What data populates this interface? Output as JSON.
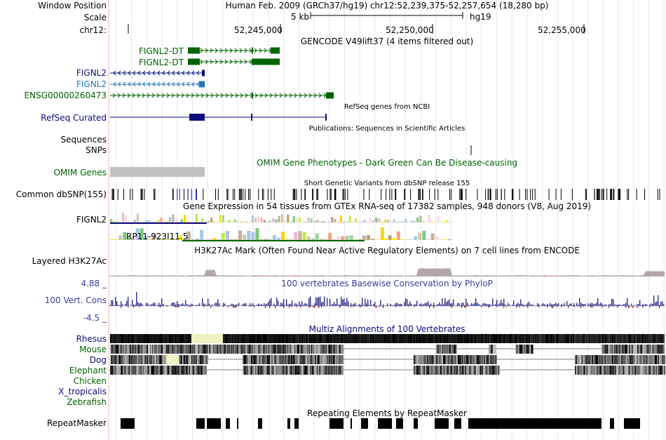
{
  "header": {
    "window_position_label": "Window Position",
    "assembly_position": "Human Feb. 2009 (GRCh37/hg19)   chr12:52,239,375-52,257,654 (18,280 bp)",
    "scale_label": "Scale",
    "scale_value": "5 kb",
    "scale_db": "hg19",
    "chrom_label": "chr12:",
    "ticks": [
      "52,245,000",
      "52,250,000",
      "52,255,000"
    ]
  },
  "gencode": {
    "title": "GENCODE V49lift37 (4 items filtered out)",
    "items": [
      {
        "label": "FIGNL2-DT",
        "color": "#006400"
      },
      {
        "label": "FIGNL2-DT",
        "color": "#006400"
      },
      {
        "label": "FIGNL2",
        "color": "#0b0b7a"
      },
      {
        "label": "FIGNL2",
        "color": "#1f77b4"
      },
      {
        "label": "ENSG00000260473",
        "color": "#006400"
      }
    ]
  },
  "refseq": {
    "title": "RefSeq genes from NCBI",
    "label": "RefSeq Curated"
  },
  "publications": {
    "title": "Publications: Sequences in Scientific Articles",
    "sequences_label": "Sequences",
    "snps_label": "SNPs"
  },
  "omim": {
    "title": "OMIM Gene Phenotypes - Dark Green Can Be Disease-causing",
    "label": "OMIM Genes"
  },
  "dbsnp": {
    "title": "Short Genetic Variants from dbSNP release 155",
    "label": "Common dbSNP(155)"
  },
  "gtex": {
    "title": "Gene Expression in 54 tissues from GTEx RNA-seq of 17382 samples, 948 donors (V8, Aug 2019)",
    "gene1": "FIGNL2",
    "gene2": "RP11-923I11.5"
  },
  "h3k27ac": {
    "title": "H3K27Ac Mark (Often Found Near Active Regulatory Elements) on 7 cell lines from ENCODE",
    "label": "Layered H3K27Ac"
  },
  "conservation": {
    "title": "100 vertebrates Basewise Conservation by PhyloP",
    "label": "100 Vert. Cons",
    "max": "4.88 _",
    "min": "-4.5 _"
  },
  "multiz": {
    "title": "Multiz Alignments of 100 Vertebrates",
    "species": [
      {
        "name": "Rhesus",
        "color": "#0b0b7a"
      },
      {
        "name": "Mouse",
        "color": "#006400"
      },
      {
        "name": "Dog",
        "color": "#0b0b7a"
      },
      {
        "name": "Elephant",
        "color": "#006400"
      },
      {
        "name": "Chicken",
        "color": "#006400"
      },
      {
        "name": "X_tropicalis",
        "color": "#0b0b7a"
      },
      {
        "name": "Zebrafish",
        "color": "#006400"
      }
    ]
  },
  "repeatmasker": {
    "title": "Repeating Elements by RepeatMasker",
    "label": "RepeatMasker"
  }
}
